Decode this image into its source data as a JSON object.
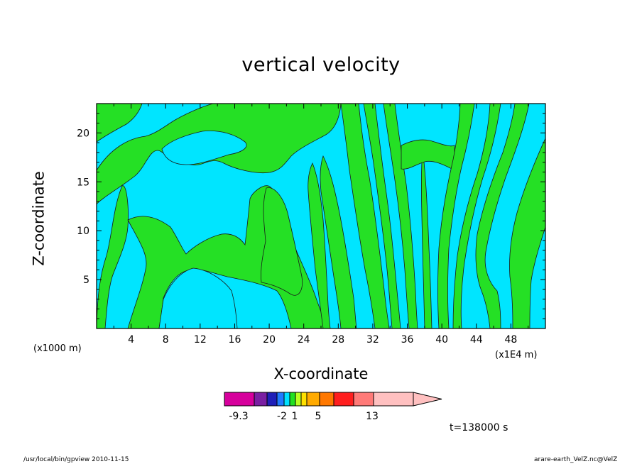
{
  "chart_data": {
    "type": "heatmap",
    "title": "vertical velocity",
    "xlabel": "X-coordinate",
    "ylabel": "Z-coordinate",
    "x_unit_left": "(x1000 m)",
    "x_unit_right": "(x1E4 m)",
    "xlim": [
      0,
      52
    ],
    "ylim": [
      0,
      23
    ],
    "x_ticks": [
      4,
      8,
      12,
      16,
      20,
      24,
      28,
      32,
      36,
      40,
      44,
      48
    ],
    "y_ticks": [
      5,
      10,
      15,
      20
    ],
    "colorbar": {
      "labels": [
        {
          "text": "-9.3",
          "value": -9.3
        },
        {
          "text": "-2",
          "value": -2
        },
        {
          "text": "1",
          "value": 1
        },
        {
          "text": "5",
          "value": 5
        },
        {
          "text": "13",
          "value": 13
        }
      ],
      "colors": [
        "#d6009c",
        "#7a1fa2",
        "#1f1fb8",
        "#1f7aff",
        "#00e0ff",
        "#20e020",
        "#b8ff20",
        "#ffe000",
        "#ffaa00",
        "#ff7800",
        "#ff1e1e",
        "#ff7a78",
        "#ffc0c0"
      ]
    },
    "fill_colors": {
      "negative": "#00e5ff",
      "positive": "#25e025"
    },
    "timestamp": "t=138000 s"
  },
  "footer": {
    "left": "/usr/local/bin/gpview  2010-11-15",
    "right": "arare-earth_VelZ.nc@VelZ"
  }
}
